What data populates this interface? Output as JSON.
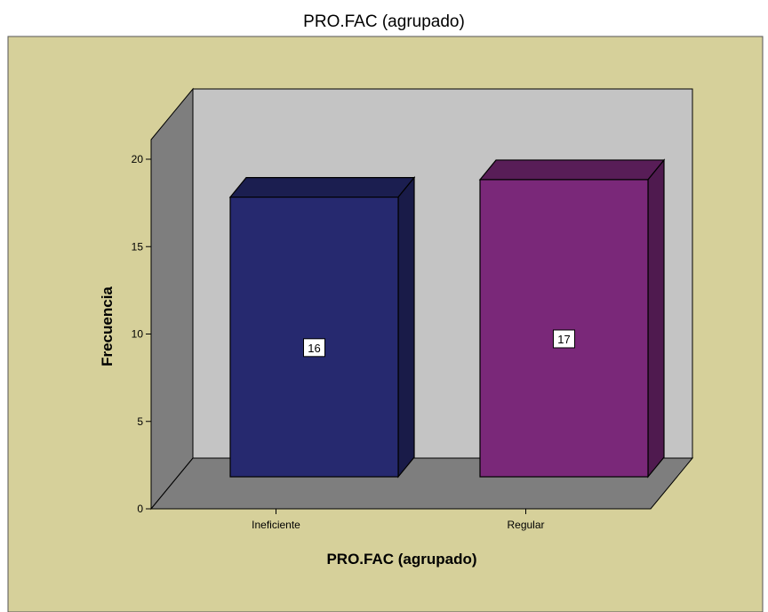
{
  "chart_data": {
    "type": "bar",
    "title": "PRO.FAC (agrupado)",
    "xlabel": "PRO.FAC (agrupado)",
    "ylabel": "Frecuencia",
    "categories": [
      "Ineficiente",
      "Regular"
    ],
    "values": [
      16,
      17
    ],
    "data_labels": [
      "16",
      "17"
    ],
    "ylim": [
      0,
      20
    ],
    "yticks": [
      0,
      5,
      10,
      15,
      20
    ],
    "ytick_labels": [
      "0",
      "5",
      "10",
      "15",
      "20"
    ],
    "style": "3d",
    "grid": false,
    "legend": "none",
    "colors": {
      "outer_background": "#D6D09A",
      "back_wall": "#C4C4C4",
      "side_wall_floor": "#7E7E7E",
      "bars": [
        "#26296F",
        "#7A2879"
      ]
    }
  }
}
